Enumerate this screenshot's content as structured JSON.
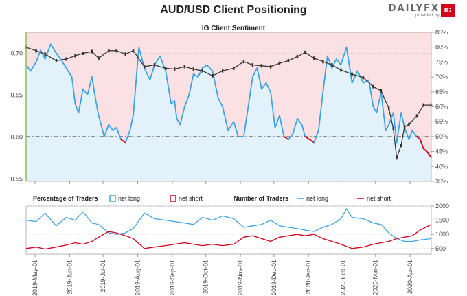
{
  "header": {
    "title": "AUD/USD Client Positioning",
    "brand_name": "DAILYFX",
    "brand_sub": "provided by",
    "brand_box": "IG"
  },
  "colors": {
    "long": "#3ca3e3",
    "short": "#d0021b",
    "price": "#333333",
    "long_fill": "#e3f1fb",
    "short_fill": "#fbe1e3",
    "accent_green": "#8bc34a"
  },
  "chart_data": [
    {
      "type": "line",
      "title": "IG Client Sentiment",
      "left_axis": {
        "ticks": [
          "0.70",
          "0.65",
          "0.60",
          "0.55"
        ],
        "ylim": [
          0.547,
          0.725
        ]
      },
      "right_axis": {
        "ticks": [
          "85%",
          "80%",
          "75%",
          "70%",
          "65%",
          "60%",
          "55%",
          "50%",
          "45%",
          "40%",
          "35%"
        ],
        "ylim": [
          35,
          85
        ]
      },
      "x_ticks": [
        "2019-May-01",
        "2019-Jun-01",
        "2019-Jul-01",
        "2019-Aug-01",
        "2019-Sep-01",
        "2019-Oct-01",
        "2019-Nov-01",
        "2019-Dec-01",
        "2020-Jan-01",
        "2020-Feb-01",
        "2020-Mar-01",
        "2020-Apr-01"
      ],
      "x_range": [
        "2019-04-23",
        "2020-04-20"
      ],
      "reference_lines": [
        {
          "axis": "right",
          "value": 50,
          "style": "dash-dot"
        }
      ],
      "series": [
        {
          "kind": "sentiment",
          "dates": [
            "2019-04-23",
            "2019-04-27",
            "2019-05-02",
            "2019-05-06",
            "2019-05-10",
            "2019-05-15",
            "2019-05-20",
            "2019-05-24",
            "2019-05-29",
            "2019-06-03",
            "2019-06-06",
            "2019-06-09",
            "2019-06-13",
            "2019-06-17",
            "2019-06-21",
            "2019-06-24",
            "2019-06-27",
            "2019-07-02",
            "2019-07-06",
            "2019-07-10",
            "2019-07-13",
            "2019-07-17",
            "2019-07-21",
            "2019-07-25",
            "2019-07-28",
            "2019-08-02",
            "2019-08-07",
            "2019-08-12",
            "2019-08-16",
            "2019-08-21",
            "2019-08-26",
            "2019-08-31",
            "2019-09-03",
            "2019-09-05",
            "2019-09-08",
            "2019-09-12",
            "2019-09-16",
            "2019-09-20",
            "2019-09-24",
            "2019-09-28",
            "2019-10-02",
            "2019-10-07",
            "2019-10-12",
            "2019-10-16",
            "2019-10-21",
            "2019-10-26",
            "2019-10-30",
            "2019-11-04",
            "2019-11-08",
            "2019-11-12",
            "2019-11-16",
            "2019-11-20",
            "2019-11-24",
            "2019-11-28",
            "2019-12-02",
            "2019-12-06",
            "2019-12-10",
            "2019-12-14",
            "2019-12-18",
            "2019-12-22",
            "2019-12-26",
            "2019-12-29",
            "2020-01-02",
            "2020-01-06",
            "2020-01-10",
            "2020-01-14",
            "2020-01-18",
            "2020-01-22",
            "2020-01-26",
            "2020-01-30",
            "2020-02-04",
            "2020-02-09",
            "2020-02-14",
            "2020-02-19",
            "2020-02-24",
            "2020-02-28",
            "2020-03-02",
            "2020-03-06",
            "2020-03-10",
            "2020-03-13",
            "2020-03-17",
            "2020-03-20",
            "2020-03-24",
            "2020-03-27",
            "2020-03-31",
            "2020-04-03",
            "2020-04-07",
            "2020-04-10",
            "2020-04-13",
            "2020-04-16",
            "2020-04-20"
          ],
          "values": [
            74,
            72,
            75,
            79,
            76,
            81,
            78,
            76,
            73,
            70,
            61,
            58,
            66,
            64,
            70,
            63,
            57,
            50,
            54,
            52,
            53,
            49,
            48,
            52,
            57,
            80,
            73,
            69,
            74,
            77,
            72,
            61,
            62,
            56,
            54,
            60,
            64,
            71,
            70,
            73,
            74,
            72,
            63,
            60,
            52,
            55,
            50,
            50,
            60,
            70,
            73,
            66,
            68,
            65,
            53,
            57,
            50,
            49,
            51,
            56,
            54,
            50,
            49,
            48,
            52,
            65,
            77,
            73,
            76,
            74,
            80,
            68,
            72,
            68,
            69,
            60,
            58,
            65,
            52,
            54,
            58,
            48,
            58,
            53,
            49,
            52,
            50,
            49,
            46,
            45,
            43
          ]
        },
        {
          "kind": "price",
          "dates": [
            "2019-04-23",
            "2019-05-02",
            "2019-05-10",
            "2019-05-20",
            "2019-05-29",
            "2019-06-06",
            "2019-06-13",
            "2019-06-21",
            "2019-06-27",
            "2019-07-06",
            "2019-07-13",
            "2019-07-21",
            "2019-07-28",
            "2019-08-07",
            "2019-08-16",
            "2019-08-26",
            "2019-09-03",
            "2019-09-12",
            "2019-09-20",
            "2019-09-28",
            "2019-10-07",
            "2019-10-16",
            "2019-10-26",
            "2019-11-04",
            "2019-11-12",
            "2019-11-20",
            "2019-11-28",
            "2019-12-06",
            "2019-12-14",
            "2019-12-22",
            "2019-12-29",
            "2020-01-06",
            "2020-01-14",
            "2020-01-22",
            "2020-01-30",
            "2020-02-09",
            "2020-02-19",
            "2020-02-28",
            "2020-03-06",
            "2020-03-13",
            "2020-03-17",
            "2020-03-20",
            "2020-03-24",
            "2020-03-27",
            "2020-03-31",
            "2020-04-07",
            "2020-04-13",
            "2020-04-20"
          ],
          "values": [
            0.707,
            0.703,
            0.699,
            0.691,
            0.693,
            0.697,
            0.7,
            0.702,
            0.694,
            0.703,
            0.703,
            0.699,
            0.703,
            0.684,
            0.686,
            0.682,
            0.681,
            0.684,
            0.681,
            0.679,
            0.673,
            0.679,
            0.682,
            0.69,
            0.686,
            0.685,
            0.684,
            0.688,
            0.691,
            0.696,
            0.701,
            0.694,
            0.69,
            0.686,
            0.68,
            0.675,
            0.671,
            0.66,
            0.655,
            0.634,
            0.61,
            0.575,
            0.59,
            0.612,
            0.615,
            0.625,
            0.638,
            0.638
          ]
        }
      ]
    },
    {
      "type": "line",
      "legend_percentage": {
        "label": "Percentage of Traders",
        "items": [
          "net long",
          "net short"
        ]
      },
      "legend_count": {
        "label": "Number of Traders",
        "items": [
          "net long",
          "net short"
        ]
      },
      "right_axis": {
        "ticks": [
          "2000",
          "1500",
          "1000",
          "500"
        ],
        "ylim": [
          300,
          2000
        ]
      },
      "series": [
        {
          "name": "net long",
          "dates": [
            "2019-04-23",
            "2019-05-02",
            "2019-05-10",
            "2019-05-20",
            "2019-05-29",
            "2019-06-06",
            "2019-06-13",
            "2019-06-21",
            "2019-06-27",
            "2019-07-06",
            "2019-07-13",
            "2019-07-21",
            "2019-07-28",
            "2019-08-07",
            "2019-08-16",
            "2019-08-26",
            "2019-09-03",
            "2019-09-12",
            "2019-09-20",
            "2019-09-28",
            "2019-10-07",
            "2019-10-16",
            "2019-10-26",
            "2019-11-04",
            "2019-11-12",
            "2019-11-20",
            "2019-11-28",
            "2019-12-06",
            "2019-12-14",
            "2019-12-22",
            "2019-12-29",
            "2020-01-06",
            "2020-01-14",
            "2020-01-22",
            "2020-01-30",
            "2020-02-04",
            "2020-02-09",
            "2020-02-19",
            "2020-02-28",
            "2020-03-06",
            "2020-03-13",
            "2020-03-20",
            "2020-03-27",
            "2020-04-03",
            "2020-04-10",
            "2020-04-20"
          ],
          "values": [
            1500,
            1450,
            1750,
            1300,
            1600,
            1500,
            1800,
            1400,
            1350,
            1050,
            1000,
            1050,
            1200,
            1750,
            1550,
            1500,
            1450,
            1400,
            1350,
            1600,
            1500,
            1650,
            1550,
            1250,
            1300,
            1350,
            1500,
            1300,
            1250,
            1200,
            1150,
            1100,
            1250,
            1350,
            1550,
            1900,
            1600,
            1550,
            1400,
            1350,
            1050,
            850,
            750,
            750,
            800,
            850
          ]
        },
        {
          "name": "net short",
          "dates": [
            "2019-04-23",
            "2019-05-02",
            "2019-05-10",
            "2019-05-20",
            "2019-05-29",
            "2019-06-06",
            "2019-06-13",
            "2019-06-21",
            "2019-06-27",
            "2019-07-06",
            "2019-07-13",
            "2019-07-21",
            "2019-07-28",
            "2019-08-07",
            "2019-08-16",
            "2019-08-26",
            "2019-09-03",
            "2019-09-12",
            "2019-09-20",
            "2019-09-28",
            "2019-10-07",
            "2019-10-16",
            "2019-10-26",
            "2019-11-04",
            "2019-11-12",
            "2019-11-20",
            "2019-11-28",
            "2019-12-06",
            "2019-12-14",
            "2019-12-22",
            "2019-12-29",
            "2020-01-06",
            "2020-01-14",
            "2020-01-22",
            "2020-01-30",
            "2020-02-09",
            "2020-02-19",
            "2020-02-28",
            "2020-03-06",
            "2020-03-13",
            "2020-03-20",
            "2020-03-27",
            "2020-04-03",
            "2020-04-10",
            "2020-04-20"
          ],
          "values": [
            500,
            550,
            480,
            550,
            620,
            700,
            650,
            750,
            900,
            1100,
            1050,
            950,
            850,
            500,
            550,
            600,
            650,
            700,
            650,
            600,
            650,
            600,
            650,
            900,
            950,
            850,
            750,
            900,
            950,
            1000,
            950,
            1000,
            850,
            750,
            650,
            500,
            550,
            650,
            700,
            750,
            850,
            900,
            950,
            1150,
            1350
          ]
        }
      ]
    }
  ]
}
